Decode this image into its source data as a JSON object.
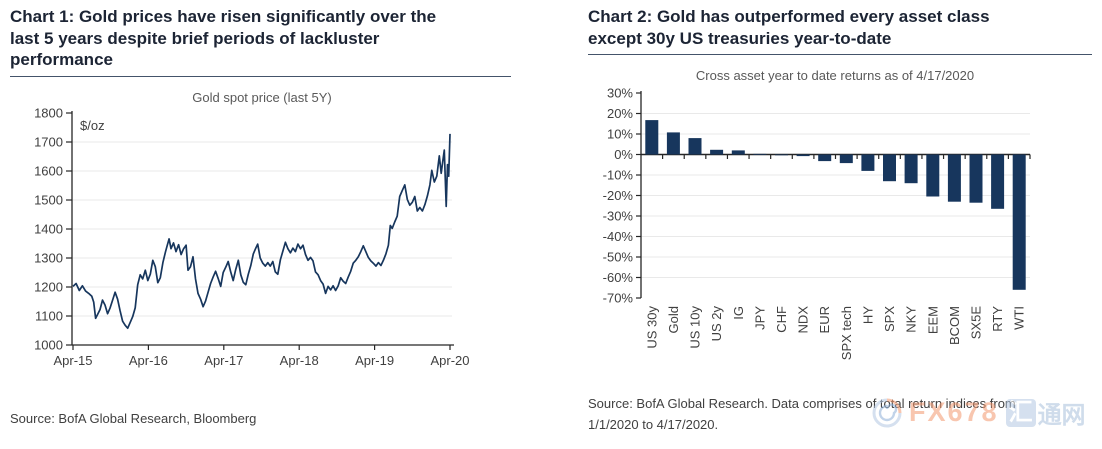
{
  "chart1": {
    "heading_lines": [
      "Chart 1: Gold prices have risen significantly over the",
      "last 5 years despite brief periods of lackluster",
      "performance"
    ],
    "source": "Source: BofA Global Research, Bloomberg"
  },
  "chart2": {
    "heading_lines": [
      "Chart 2: Gold has outperformed every asset class",
      "except 30y US treasuries year-to-date"
    ],
    "source_lines": [
      "Source: BofA Global Research. Data comprises of total return indices from",
      "1/1/2020 to 4/17/2020."
    ]
  },
  "watermark": {
    "brand": "FX678",
    "cn_first": "汇",
    "cn_rest": "通网",
    "orange": "#f3986e",
    "blue": "#a9c0dc"
  },
  "colors": {
    "series_navy": "#17365d",
    "axis": "#262626",
    "tick_label": "#404040",
    "grid": "#e9e9e9",
    "chart_title": "#595959",
    "heading": "#1c2434",
    "rule": "#44546a"
  },
  "chart_data": [
    {
      "type": "line",
      "title": "Gold spot price (last 5Y)",
      "ylabel": "$/oz",
      "x_unit": "months since Apr-2015",
      "xlim": [
        0,
        60
      ],
      "ylim": [
        1000,
        1800
      ],
      "y_ticks": [
        1000,
        1100,
        1200,
        1300,
        1400,
        1500,
        1600,
        1700,
        1800
      ],
      "grid_y": [
        1100,
        1200,
        1300,
        1400,
        1500,
        1600,
        1700
      ],
      "x_ticks": [
        0,
        12,
        24,
        36,
        48,
        60
      ],
      "x_tick_labels": [
        "Apr-15",
        "Apr-16",
        "Apr-17",
        "Apr-18",
        "Apr-19",
        "Apr-20"
      ],
      "line_color": "#17365d",
      "points": [
        [
          0,
          1202
        ],
        [
          0.5,
          1212
        ],
        [
          1,
          1188
        ],
        [
          1.5,
          1204
        ],
        [
          2,
          1186
        ],
        [
          2.5,
          1178
        ],
        [
          3,
          1168
        ],
        [
          3.3,
          1148
        ],
        [
          3.6,
          1092
        ],
        [
          3.9,
          1105
        ],
        [
          4.3,
          1122
        ],
        [
          4.7,
          1155
        ],
        [
          5.1,
          1138
        ],
        [
          5.5,
          1108
        ],
        [
          5.9,
          1128
        ],
        [
          6.3,
          1155
        ],
        [
          6.7,
          1182
        ],
        [
          7.1,
          1158
        ],
        [
          7.5,
          1118
        ],
        [
          7.9,
          1082
        ],
        [
          8.3,
          1068
        ],
        [
          8.7,
          1058
        ],
        [
          9.1,
          1078
        ],
        [
          9.5,
          1098
        ],
        [
          9.9,
          1128
        ],
        [
          10.3,
          1208
        ],
        [
          10.7,
          1242
        ],
        [
          11.1,
          1228
        ],
        [
          11.5,
          1258
        ],
        [
          11.9,
          1222
        ],
        [
          12.3,
          1244
        ],
        [
          12.7,
          1292
        ],
        [
          13.1,
          1270
        ],
        [
          13.5,
          1215
        ],
        [
          13.9,
          1232
        ],
        [
          14.3,
          1284
        ],
        [
          14.7,
          1320
        ],
        [
          15,
          1344
        ],
        [
          15.3,
          1366
        ],
        [
          15.6,
          1332
        ],
        [
          16,
          1352
        ],
        [
          16.4,
          1322
        ],
        [
          16.8,
          1346
        ],
        [
          17.2,
          1312
        ],
        [
          17.6,
          1332
        ],
        [
          18,
          1344
        ],
        [
          18.3,
          1258
        ],
        [
          18.7,
          1270
        ],
        [
          19.1,
          1304
        ],
        [
          19.5,
          1228
        ],
        [
          19.9,
          1178
        ],
        [
          20.3,
          1158
        ],
        [
          20.7,
          1132
        ],
        [
          21.1,
          1152
        ],
        [
          21.5,
          1182
        ],
        [
          21.9,
          1212
        ],
        [
          22.3,
          1234
        ],
        [
          22.7,
          1254
        ],
        [
          23.1,
          1230
        ],
        [
          23.5,
          1202
        ],
        [
          23.9,
          1250
        ],
        [
          24.3,
          1268
        ],
        [
          24.7,
          1288
        ],
        [
          25.1,
          1252
        ],
        [
          25.5,
          1222
        ],
        [
          25.9,
          1260
        ],
        [
          26.3,
          1292
        ],
        [
          26.7,
          1242
        ],
        [
          27.1,
          1216
        ],
        [
          27.5,
          1208
        ],
        [
          27.9,
          1244
        ],
        [
          28.3,
          1274
        ],
        [
          28.7,
          1314
        ],
        [
          29.1,
          1334
        ],
        [
          29.4,
          1348
        ],
        [
          29.8,
          1300
        ],
        [
          30.2,
          1282
        ],
        [
          30.6,
          1272
        ],
        [
          31,
          1284
        ],
        [
          31.4,
          1272
        ],
        [
          31.8,
          1288
        ],
        [
          32.2,
          1252
        ],
        [
          32.6,
          1244
        ],
        [
          33,
          1294
        ],
        [
          33.4,
          1324
        ],
        [
          33.8,
          1354
        ],
        [
          34.2,
          1332
        ],
        [
          34.6,
          1318
        ],
        [
          35,
          1334
        ],
        [
          35.4,
          1322
        ],
        [
          35.8,
          1348
        ],
        [
          36.2,
          1332
        ],
        [
          36.6,
          1344
        ],
        [
          37,
          1312
        ],
        [
          37.4,
          1292
        ],
        [
          37.8,
          1302
        ],
        [
          38.2,
          1290
        ],
        [
          38.6,
          1252
        ],
        [
          39,
          1242
        ],
        [
          39.4,
          1222
        ],
        [
          39.8,
          1210
        ],
        [
          40.2,
          1178
        ],
        [
          40.6,
          1202
        ],
        [
          41,
          1190
        ],
        [
          41.4,
          1204
        ],
        [
          41.8,
          1188
        ],
        [
          42.2,
          1204
        ],
        [
          42.6,
          1232
        ],
        [
          43,
          1220
        ],
        [
          43.4,
          1212
        ],
        [
          43.8,
          1234
        ],
        [
          44.2,
          1254
        ],
        [
          44.6,
          1282
        ],
        [
          45,
          1292
        ],
        [
          45.4,
          1304
        ],
        [
          45.8,
          1322
        ],
        [
          46.2,
          1342
        ],
        [
          46.6,
          1322
        ],
        [
          47,
          1302
        ],
        [
          47.4,
          1290
        ],
        [
          47.8,
          1282
        ],
        [
          48.2,
          1272
        ],
        [
          48.6,
          1284
        ],
        [
          49,
          1274
        ],
        [
          49.4,
          1292
        ],
        [
          49.8,
          1314
        ],
        [
          50.2,
          1344
        ],
        [
          50.5,
          1412
        ],
        [
          50.8,
          1402
        ],
        [
          51.2,
          1424
        ],
        [
          51.6,
          1444
        ],
        [
          52,
          1512
        ],
        [
          52.4,
          1532
        ],
        [
          52.8,
          1552
        ],
        [
          53.2,
          1502
        ],
        [
          53.6,
          1482
        ],
        [
          54,
          1492
        ],
        [
          54.4,
          1512
        ],
        [
          54.8,
          1462
        ],
        [
          55.2,
          1474
        ],
        [
          55.6,
          1462
        ],
        [
          56,
          1484
        ],
        [
          56.4,
          1514
        ],
        [
          56.8,
          1552
        ],
        [
          57.1,
          1602
        ],
        [
          57.5,
          1562
        ],
        [
          57.9,
          1582
        ],
        [
          58.3,
          1652
        ],
        [
          58.6,
          1592
        ],
        [
          58.9,
          1642
        ],
        [
          59.1,
          1672
        ],
        [
          59.4,
          1478
        ],
        [
          59.6,
          1622
        ],
        [
          59.8,
          1582
        ],
        [
          60,
          1728
        ]
      ]
    },
    {
      "type": "bar",
      "title": "Cross asset year to date returns as of 4/17/2020",
      "ylim": [
        -70,
        30
      ],
      "y_ticks": [
        30,
        20,
        10,
        0,
        -10,
        -20,
        -30,
        -40,
        -50,
        -60,
        -70
      ],
      "y_tick_suffix": "%",
      "grid_y": [
        20,
        10,
        -10,
        -20,
        -30,
        -40,
        -50,
        -60
      ],
      "bar_color": "#17365d",
      "categories": [
        "US 30y",
        "Gold",
        "US 10y",
        "US 2y",
        "IG",
        "JPY",
        "CHF",
        "NDX",
        "EUR",
        "SPX tech",
        "HY",
        "SPX",
        "NKY",
        "EEM",
        "BCOM",
        "SX5E",
        "RTY",
        "WTI"
      ],
      "values": [
        16.8,
        10.8,
        8,
        2.3,
        2,
        0.3,
        -0.4,
        -0.8,
        -3.2,
        -4.2,
        -8,
        -13,
        -14,
        -20.5,
        -23,
        -23.5,
        -26.5,
        -66
      ]
    }
  ]
}
